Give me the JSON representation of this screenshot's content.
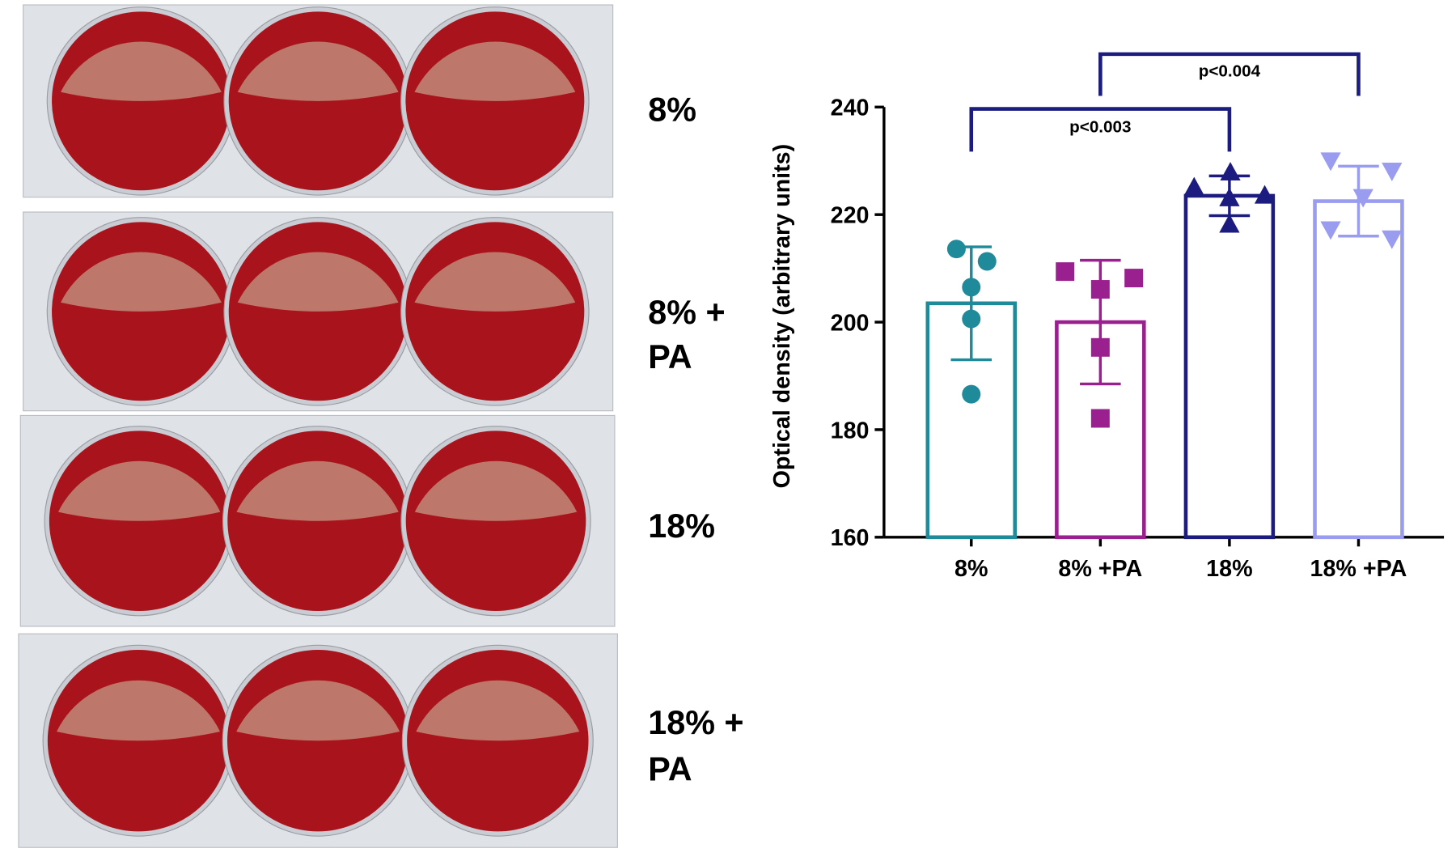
{
  "photo_labels": [
    [
      "8%"
    ],
    [
      "8% +",
      "PA"
    ],
    [
      "18%"
    ],
    [
      "18% +",
      "PA"
    ]
  ],
  "chart_data": {
    "type": "bar",
    "y_label": "Optical density (arbitrary units)",
    "categories": [
      "8%",
      "8% +PA",
      "18%",
      "18% +PA"
    ],
    "values": [
      203.5,
      200,
      223.5,
      222.5
    ],
    "errors": [
      10.5,
      11.5,
      3.7,
      6.5
    ],
    "points": [
      [
        213.6,
        211.3,
        206.5,
        200.6,
        186.6
      ],
      [
        209.4,
        206.1,
        208.2,
        195.3,
        182.1
      ],
      [
        225.1,
        227.9,
        223.6,
        223.1,
        218.2
      ],
      [
        230,
        228.1,
        223.2,
        217.2,
        215.5
      ]
    ],
    "colors": [
      "#1f8a99",
      "#9a1f8f",
      "#1b1b80",
      "#9a9cf0"
    ],
    "markers": [
      "circle",
      "square",
      "triangle",
      "triangle-down"
    ],
    "ylim": [
      160,
      240
    ],
    "yticks": [
      160,
      180,
      200,
      220,
      240
    ],
    "annotations": [
      {
        "text": "p<0.003",
        "groups": [
          0,
          2
        ]
      },
      {
        "text": "p<0.004",
        "groups": [
          1,
          3
        ]
      }
    ],
    "annotation_color": "#1b1b80"
  }
}
